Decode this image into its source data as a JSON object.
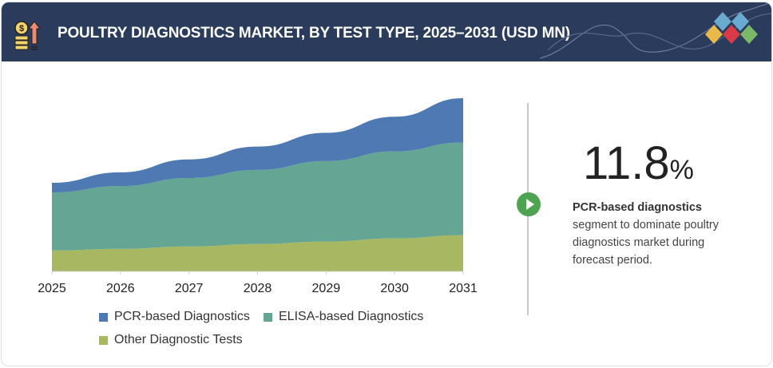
{
  "header": {
    "title": "POULTRY DIAGNOSTICS MARKET, BY TEST TYPE, 2025–2031 (USD MN)",
    "icon": "coin-growth-icon",
    "logo_colors": [
      "#e9b949",
      "#d93a47",
      "#6aa9d0",
      "#7cb86a"
    ]
  },
  "highlight": {
    "value": "11.8",
    "unit": "%",
    "bold": "PCR-based diagnostics",
    "text": "segment to dominate poultry diagnostics market during forecast period.",
    "icon": "play-icon",
    "accent": "#4ca352"
  },
  "chart_data": {
    "type": "area",
    "stacked": true,
    "categories": [
      "2025",
      "2026",
      "2027",
      "2028",
      "2029",
      "2030",
      "2031"
    ],
    "series": [
      {
        "name": "Other Diagnostic Tests",
        "color": "#a8b862",
        "values": [
          26,
          28,
          31,
          34,
          37,
          41,
          45
        ]
      },
      {
        "name": "ELISA-based Diagnostics",
        "color": "#64a693",
        "values": [
          72,
          78,
          85,
          92,
          100,
          108,
          115
        ]
      },
      {
        "name": "PCR-based Diagnostics",
        "color": "#4f79b3",
        "values": [
          12,
          17,
          23,
          29,
          35,
          43,
          55
        ]
      }
    ],
    "ylim": [
      0,
      220
    ],
    "grid": false,
    "legend_position": "bottom",
    "legend_order": [
      "PCR-based Diagnostics",
      "ELISA-based Diagnostics",
      "Other Diagnostic Tests"
    ]
  }
}
